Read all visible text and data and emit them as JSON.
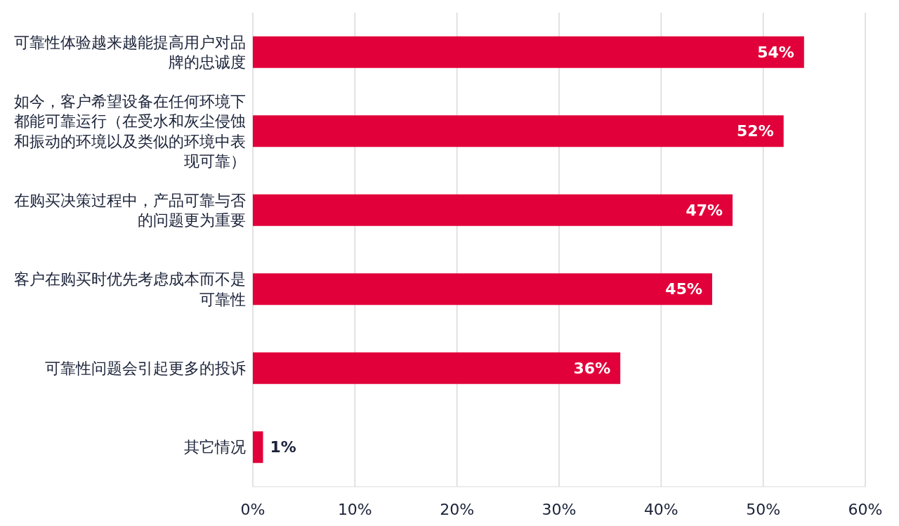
{
  "chart_data": {
    "type": "bar",
    "orientation": "horizontal",
    "categories": [
      "可靠性体验越来越能提高用户对品牌的忠诚度",
      "如今，客户希望设备在任何环境下都能可靠运行（在受水和灰尘侵蚀和振动的环境以及类似的环境中表现可靠）",
      "在购买决策过程中，产品可靠与否的问题更为重要",
      "客户在购买时优先考虑成本而不是可靠性",
      "可靠性问题会引起更多的投诉",
      "其它情况"
    ],
    "values": [
      54,
      52,
      47,
      45,
      36,
      1
    ],
    "value_labels": [
      "54%",
      "52%",
      "47%",
      "45%",
      "36%",
      "1%"
    ],
    "color": "#e2003a",
    "xlim": [
      0,
      60
    ],
    "xticks": [
      {
        "value": 0,
        "label": "0%"
      },
      {
        "value": 10,
        "label": "10%"
      },
      {
        "value": 20,
        "label": "20%"
      },
      {
        "value": 30,
        "label": "30%"
      },
      {
        "value": 40,
        "label": "40%"
      },
      {
        "value": 50,
        "label": "50%"
      },
      {
        "value": 60,
        "label": "60%"
      }
    ],
    "grid": "x"
  }
}
